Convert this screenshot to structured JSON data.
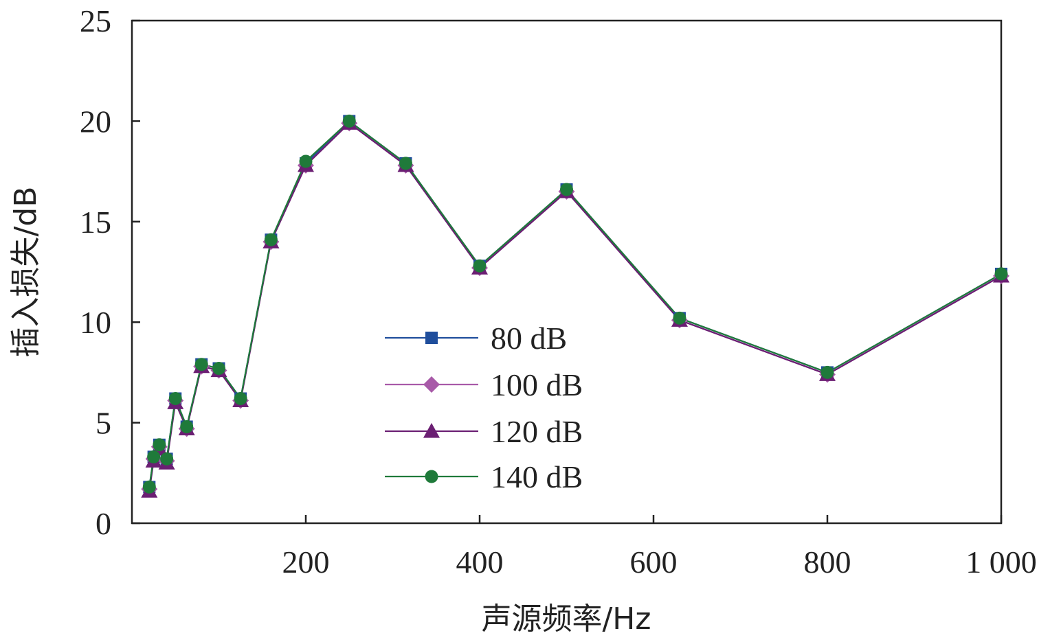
{
  "chart_data": {
    "type": "line",
    "xlabel": "声源频率/Hz",
    "ylabel": "插入损失/dB",
    "xlim": [
      0,
      1000
    ],
    "ylim": [
      0,
      25
    ],
    "xticks": [
      200,
      400,
      600,
      800,
      1000
    ],
    "xtick_labels": [
      "200",
      "400",
      "600",
      "800",
      "1 000"
    ],
    "yticks": [
      0,
      5,
      10,
      15,
      20,
      25
    ],
    "ytick_labels": [
      "0",
      "5",
      "10",
      "15",
      "20",
      "25"
    ],
    "grid": false,
    "legend_position": "center",
    "x": [
      20,
      25,
      31.5,
      40,
      50,
      63,
      80,
      100,
      125,
      160,
      200,
      250,
      315,
      400,
      500,
      630,
      800,
      1000
    ],
    "series": [
      {
        "name": "80 dB",
        "color": "#1f4e9c",
        "marker": "square",
        "values": [
          1.8,
          3.3,
          3.9,
          3.2,
          6.2,
          4.8,
          7.9,
          7.7,
          6.2,
          14.1,
          17.9,
          20.0,
          17.9,
          12.8,
          16.6,
          10.2,
          7.5,
          12.4
        ]
      },
      {
        "name": "100 dB",
        "color": "#a85aa8",
        "marker": "diamond",
        "values": [
          1.7,
          3.2,
          3.8,
          3.1,
          6.1,
          4.7,
          7.8,
          7.6,
          6.1,
          14.0,
          17.8,
          19.9,
          17.8,
          12.7,
          16.5,
          10.1,
          7.4,
          12.3
        ]
      },
      {
        "name": "120 dB",
        "color": "#6b1f73",
        "marker": "triangle",
        "values": [
          1.6,
          3.1,
          3.7,
          3.0,
          6.0,
          4.7,
          7.8,
          7.6,
          6.1,
          14.0,
          17.8,
          19.9,
          17.8,
          12.7,
          16.5,
          10.1,
          7.4,
          12.3
        ]
      },
      {
        "name": "140 dB",
        "color": "#1f7a3a",
        "marker": "circle",
        "values": [
          1.8,
          3.3,
          3.9,
          3.2,
          6.2,
          4.8,
          7.9,
          7.7,
          6.2,
          14.1,
          18.0,
          20.0,
          17.9,
          12.8,
          16.6,
          10.2,
          7.5,
          12.4
        ]
      }
    ]
  }
}
